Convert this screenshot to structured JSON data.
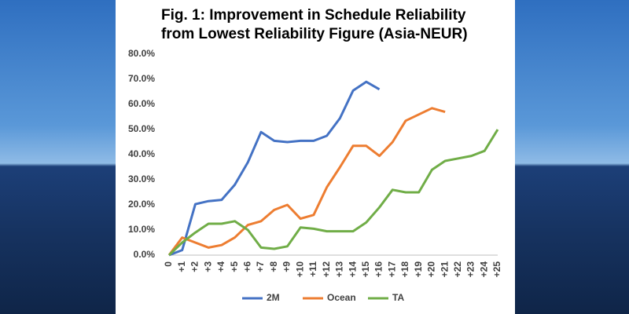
{
  "chart_data": {
    "type": "line",
    "title": [
      "Fig. 1: Improvement in Schedule Reliability",
      "from Lowest Reliability Figure (Asia-NEUR)"
    ],
    "categories": [
      "0",
      "+1",
      "+2",
      "+3",
      "+4",
      "+5",
      "+6",
      "+7",
      "+8",
      "+9",
      "+10",
      "+11",
      "+12",
      "+13",
      "+14",
      "+15",
      "+16",
      "+17",
      "+18",
      "+19",
      "+20",
      "+21",
      "+22",
      "+23",
      "+24",
      "+25"
    ],
    "series": [
      {
        "name": "2M",
        "color": "#4472c4",
        "values": [
          0,
          2,
          20.3,
          21.5,
          22,
          28,
          37,
          49,
          45.5,
          45,
          45.5,
          45.5,
          47.5,
          54.5,
          65.5,
          69,
          66,
          null,
          null,
          null,
          null,
          null,
          null,
          null,
          null,
          null
        ]
      },
      {
        "name": "Ocean",
        "color": "#ed7d31",
        "values": [
          0,
          7,
          5,
          3,
          4,
          7,
          12,
          13.5,
          18,
          20,
          14.5,
          16,
          27,
          35,
          43.5,
          43.5,
          39.5,
          45,
          53.5,
          56,
          58.5,
          57,
          null,
          null,
          null,
          null
        ]
      },
      {
        "name": "TA",
        "color": "#70ad47",
        "values": [
          0,
          5,
          9,
          12.5,
          12.5,
          13.5,
          10,
          3,
          2.5,
          3.5,
          11,
          10.5,
          9.5,
          9.5,
          9.5,
          13,
          19,
          26,
          25,
          25,
          34,
          37.5,
          38.5,
          39.5,
          41.5,
          50
        ]
      }
    ],
    "ylim": [
      0,
      80
    ],
    "yticks": [
      {
        "value": 0,
        "label": "0.0%"
      },
      {
        "value": 10,
        "label": "10.0%"
      },
      {
        "value": 20,
        "label": "20.0%"
      },
      {
        "value": 30,
        "label": "30.0%"
      },
      {
        "value": 40,
        "label": "40.0%"
      },
      {
        "value": 50,
        "label": "50.0%"
      },
      {
        "value": 60,
        "label": "60.0%"
      },
      {
        "value": 70,
        "label": "70.0%"
      },
      {
        "value": 80,
        "label": "80.0%"
      }
    ],
    "grid": false,
    "legend": "bottom"
  }
}
